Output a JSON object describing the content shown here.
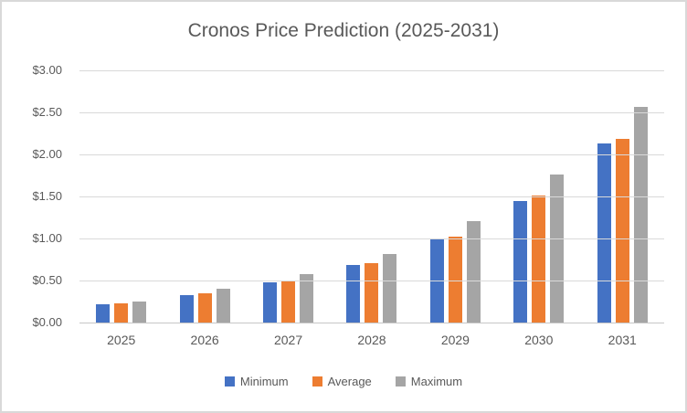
{
  "chart_data": {
    "type": "bar",
    "title": "Cronos Price Prediction (2025-2031)",
    "categories": [
      "2025",
      "2026",
      "2027",
      "2028",
      "2029",
      "2030",
      "2031"
    ],
    "series": [
      {
        "name": "Minimum",
        "color": "#4472C4",
        "values": [
          0.22,
          0.33,
          0.48,
          0.69,
          0.99,
          1.45,
          2.13
        ]
      },
      {
        "name": "Average",
        "color": "#ED7D31",
        "values": [
          0.23,
          0.35,
          0.5,
          0.71,
          1.02,
          1.51,
          2.19
        ]
      },
      {
        "name": "Maximum",
        "color": "#A5A5A5",
        "values": [
          0.25,
          0.4,
          0.58,
          0.82,
          1.21,
          1.76,
          2.56
        ]
      }
    ],
    "xlabel": "",
    "ylabel": "",
    "ylim": [
      0,
      3
    ],
    "y_tick_labels": [
      "$3.00",
      "$2.50",
      "$2.00",
      "$1.50",
      "$1.00",
      "$0.50",
      "$0.00"
    ],
    "grid": true,
    "legend_position": "bottom"
  },
  "style": {
    "text_color": "#595959",
    "gridline_color": "#D9D9D9",
    "axis_line_color": "#C6C6C6",
    "background": "#FFFFFF",
    "border_color": "#D9D9D9"
  }
}
